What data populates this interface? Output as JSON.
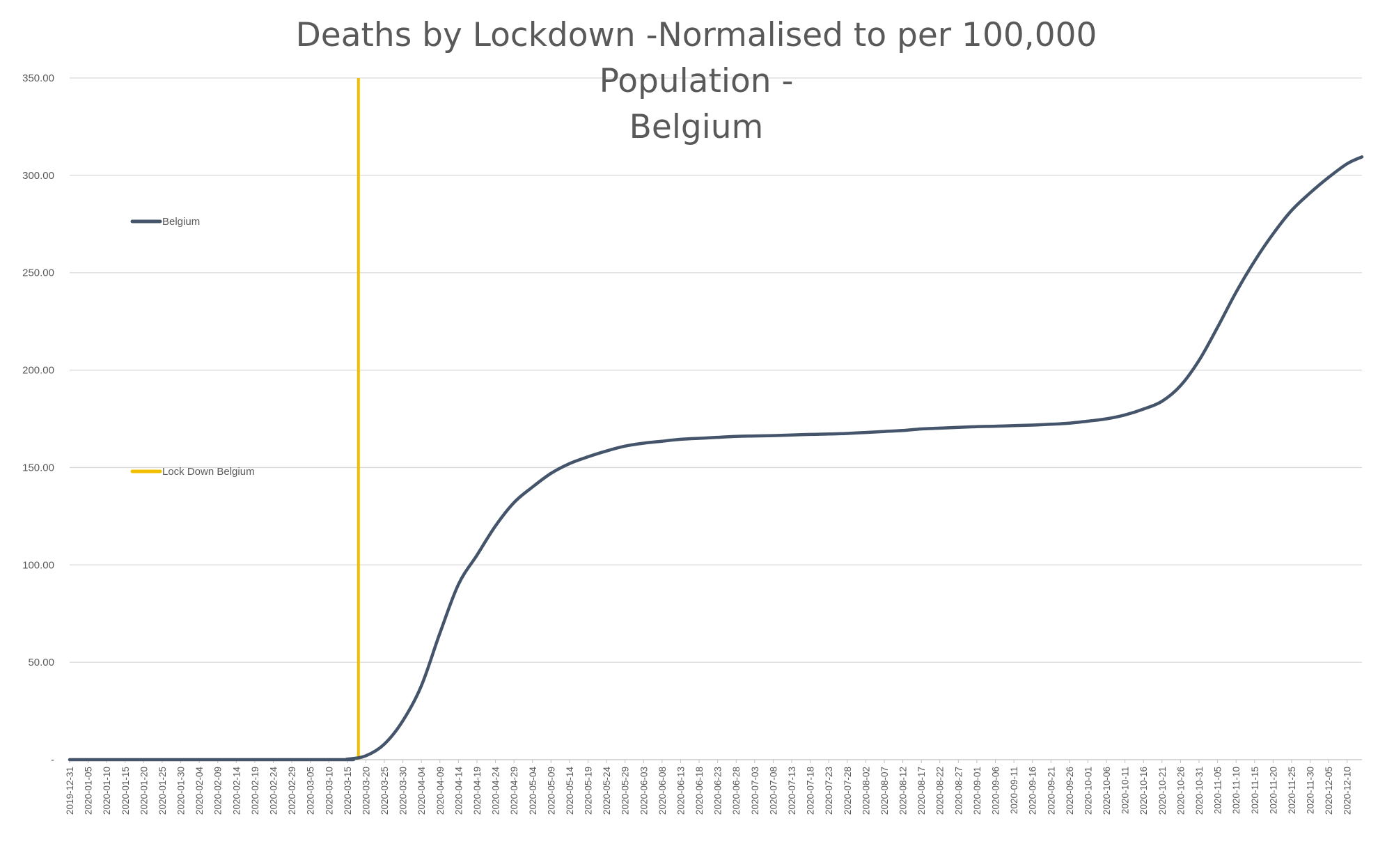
{
  "chart_data": {
    "type": "line",
    "title": "Deaths by Lockdown -Normalised to per 100,000 Population -\nBelgium",
    "xlabel": "",
    "ylabel": "",
    "ylim": [
      0,
      350
    ],
    "y_ticks": [
      0,
      50,
      100,
      150,
      200,
      250,
      300,
      350
    ],
    "y_tick_labels": [
      "-",
      "50.00",
      "100.00",
      "150.00",
      "200.00",
      "250.00",
      "300.00",
      "350.00"
    ],
    "x_start": "2019-12-31",
    "x_end": "2020-12-14",
    "x_tick_labels": [
      "2019-12-31",
      "2020-01-05",
      "2020-01-10",
      "2020-01-15",
      "2020-01-20",
      "2020-01-25",
      "2020-01-30",
      "2020-02-04",
      "2020-02-09",
      "2020-02-14",
      "2020-02-19",
      "2020-02-24",
      "2020-02-29",
      "2020-03-05",
      "2020-03-10",
      "2020-03-15",
      "2020-03-20",
      "2020-03-25",
      "2020-03-30",
      "2020-04-04",
      "2020-04-09",
      "2020-04-14",
      "2020-04-19",
      "2020-04-24",
      "2020-04-29",
      "2020-05-04",
      "2020-05-09",
      "2020-05-14",
      "2020-05-19",
      "2020-05-24",
      "2020-05-29",
      "2020-06-03",
      "2020-06-08",
      "2020-06-13",
      "2020-06-18",
      "2020-06-23",
      "2020-06-28",
      "2020-07-03",
      "2020-07-08",
      "2020-07-13",
      "2020-07-18",
      "2020-07-23",
      "2020-07-28",
      "2020-08-02",
      "2020-08-07",
      "2020-08-12",
      "2020-08-17",
      "2020-08-22",
      "2020-08-27",
      "2020-09-01",
      "2020-09-06",
      "2020-09-11",
      "2020-09-16",
      "2020-09-21",
      "2020-09-26",
      "2020-10-01",
      "2020-10-06",
      "2020-10-11",
      "2020-10-16",
      "2020-10-21",
      "2020-10-26",
      "2020-10-31",
      "2020-11-05",
      "2020-11-10",
      "2020-11-15",
      "2020-11-20",
      "2020-11-25",
      "2020-11-30",
      "2020-12-05",
      "2020-12-10"
    ],
    "grid": true,
    "legend_position": "left",
    "series": [
      {
        "name": "Belgium",
        "color": "#44546a",
        "points": [
          [
            "2019-12-31",
            0
          ],
          [
            "2020-03-10",
            0
          ],
          [
            "2020-03-15",
            0.3
          ],
          [
            "2020-03-20",
            2
          ],
          [
            "2020-03-25",
            8
          ],
          [
            "2020-03-30",
            20
          ],
          [
            "2020-04-04",
            38
          ],
          [
            "2020-04-09",
            65
          ],
          [
            "2020-04-14",
            90
          ],
          [
            "2020-04-19",
            105
          ],
          [
            "2020-04-24",
            120
          ],
          [
            "2020-04-29",
            132
          ],
          [
            "2020-05-04",
            140
          ],
          [
            "2020-05-09",
            147
          ],
          [
            "2020-05-14",
            152
          ],
          [
            "2020-05-19",
            155.5
          ],
          [
            "2020-05-24",
            158.5
          ],
          [
            "2020-05-29",
            161
          ],
          [
            "2020-06-03",
            162.5
          ],
          [
            "2020-06-08",
            163.5
          ],
          [
            "2020-06-13",
            164.5
          ],
          [
            "2020-06-18",
            165
          ],
          [
            "2020-06-23",
            165.5
          ],
          [
            "2020-06-28",
            166
          ],
          [
            "2020-07-03",
            166.2
          ],
          [
            "2020-07-08",
            166.4
          ],
          [
            "2020-07-13",
            166.7
          ],
          [
            "2020-07-18",
            167
          ],
          [
            "2020-07-23",
            167.2
          ],
          [
            "2020-07-28",
            167.5
          ],
          [
            "2020-08-02",
            168
          ],
          [
            "2020-08-07",
            168.5
          ],
          [
            "2020-08-12",
            169
          ],
          [
            "2020-08-17",
            169.8
          ],
          [
            "2020-08-22",
            170.2
          ],
          [
            "2020-08-27",
            170.6
          ],
          [
            "2020-09-01",
            171
          ],
          [
            "2020-09-06",
            171.2
          ],
          [
            "2020-09-11",
            171.5
          ],
          [
            "2020-09-16",
            171.8
          ],
          [
            "2020-09-21",
            172.2
          ],
          [
            "2020-09-26",
            172.8
          ],
          [
            "2020-10-01",
            173.8
          ],
          [
            "2020-10-06",
            175
          ],
          [
            "2020-10-11",
            177
          ],
          [
            "2020-10-16",
            180
          ],
          [
            "2020-10-21",
            184
          ],
          [
            "2020-10-26",
            192
          ],
          [
            "2020-10-31",
            205
          ],
          [
            "2020-11-05",
            222
          ],
          [
            "2020-11-10",
            240
          ],
          [
            "2020-11-15",
            256
          ],
          [
            "2020-11-20",
            270
          ],
          [
            "2020-11-25",
            282
          ],
          [
            "2020-11-30",
            291
          ],
          [
            "2020-12-05",
            299
          ],
          [
            "2020-12-10",
            306
          ],
          [
            "2020-12-14",
            309.5
          ]
        ]
      }
    ],
    "lockdown_marker": {
      "name": "Lock Down Belgium",
      "color": "#f2bf00",
      "date": "2020-03-18",
      "range": [
        0,
        350
      ]
    }
  }
}
